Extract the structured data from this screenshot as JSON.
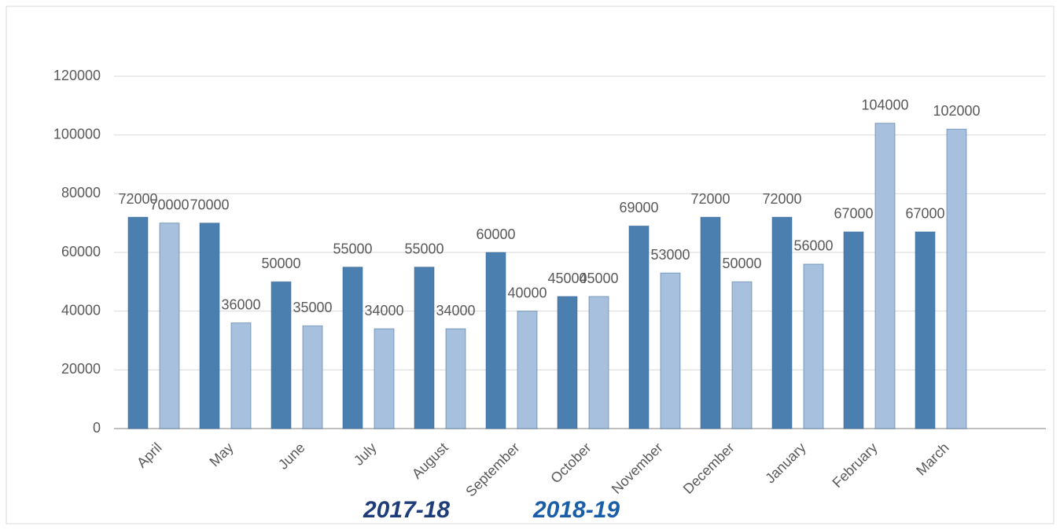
{
  "chart_data": {
    "type": "bar",
    "categories": [
      "April",
      "May",
      "June",
      "July",
      "August",
      "September",
      "October",
      "November",
      "December",
      "January",
      "February",
      "March"
    ],
    "series": [
      {
        "name": "2017-18",
        "color": "#4a7fb0",
        "values": [
          72000,
          70000,
          50000,
          55000,
          55000,
          60000,
          45000,
          69000,
          72000,
          72000,
          67000,
          67000
        ]
      },
      {
        "name": "2018-19",
        "color": "#a7c0dd",
        "values": [
          70000,
          36000,
          35000,
          34000,
          34000,
          40000,
          45000,
          53000,
          50000,
          56000,
          104000,
          102000
        ]
      }
    ],
    "legend_colors": [
      "#1d3c78",
      "#1b5ea8"
    ],
    "ylim": [
      0,
      120000
    ],
    "yticks": [
      0,
      20000,
      40000,
      60000,
      80000,
      100000,
      120000
    ],
    "grid": true
  }
}
